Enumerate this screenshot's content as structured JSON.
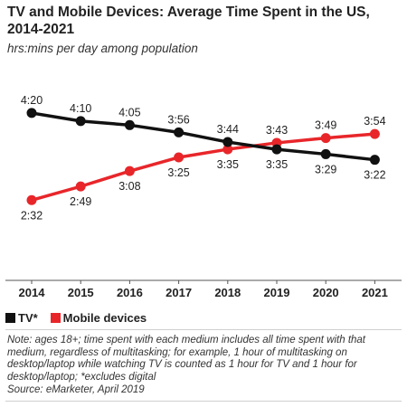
{
  "header": {
    "title": "TV and Mobile Devices: Average Time Spent in the US, 2014-2021",
    "subtitle": "hrs:mins per day among population"
  },
  "legend": [
    {
      "label": "TV*",
      "color": "#111111"
    },
    {
      "label": "Mobile devices",
      "color": "#e8262a"
    }
  ],
  "footer": {
    "note": "Note: ages 18+; time spent with each medium includes all time spent with that medium, regardless of multitasking; for example, 1 hour of multitasking on desktop/laptop while watching TV is counted as 1 hour for TV and 1 hour for desktop/laptop; *excludes digital",
    "source": "Source: eMarketer, April 2019"
  },
  "chart_data": {
    "type": "line",
    "categories": [
      "2014",
      "2015",
      "2016",
      "2017",
      "2018",
      "2019",
      "2020",
      "2021"
    ],
    "series": [
      {
        "name": "TV*",
        "color": "#111111",
        "values": [
          260,
          250,
          245,
          236,
          224,
          215,
          209,
          202
        ],
        "labels": [
          "4:20",
          "4:10",
          "4:05",
          "3:56",
          "3:44",
          "3:35",
          "3:29",
          "3:22"
        ],
        "label_position": [
          "above",
          "above",
          "above",
          "above",
          "above",
          "below",
          "below",
          "below"
        ]
      },
      {
        "name": "Mobile devices",
        "color": "#e8262a",
        "values": [
          152,
          169,
          188,
          205,
          215,
          223,
          229,
          234
        ],
        "labels": [
          "2:32",
          "2:49",
          "3:08",
          "3:25",
          "3:35",
          "3:43",
          "3:49",
          "3:54"
        ],
        "label_position": [
          "below",
          "below",
          "below",
          "below",
          "below",
          "above",
          "above",
          "above"
        ]
      }
    ],
    "unit": "minutes per day",
    "ylim": [
      140,
      270
    ],
    "grid": false,
    "legend_position": "bottom-left"
  }
}
